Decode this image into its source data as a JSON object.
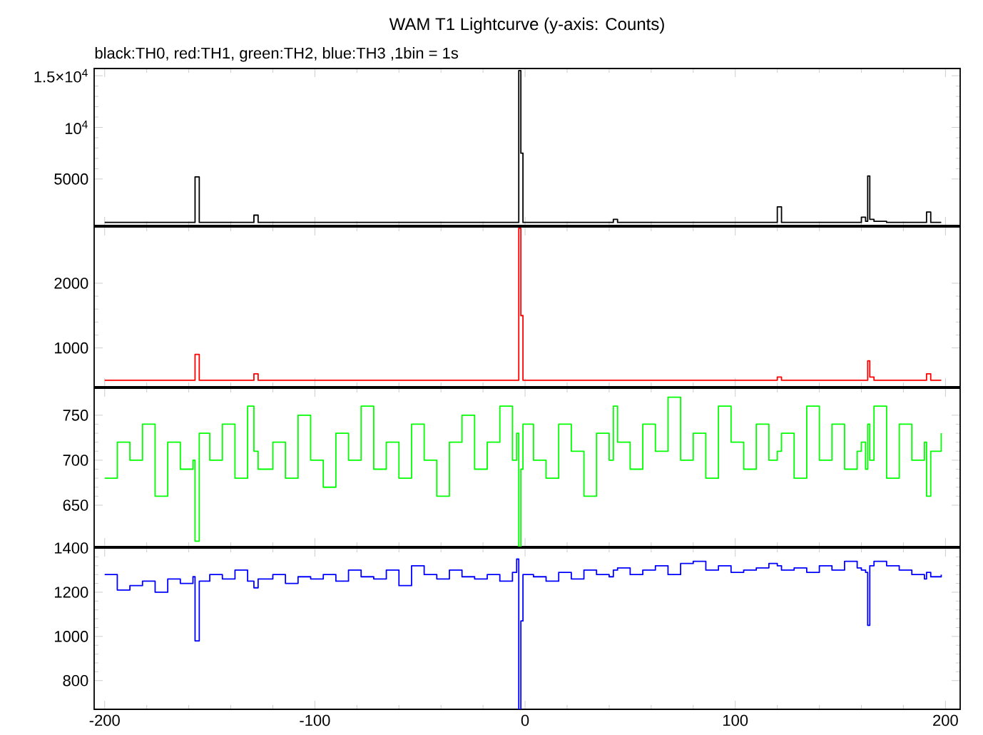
{
  "chart_data": [
    {
      "type": "step",
      "title": "WAM T1 Lightcurve (y-axis: Counts)",
      "subtitle": "black:TH0, red:TH1, green:TH2, blue:TH3 ,1bin = 1s",
      "color": "#000000",
      "tick_labels": "y",
      "xlim": [
        -205,
        207
      ],
      "xticks": [
        -200,
        -100,
        0,
        100,
        200
      ],
      "ylim": [
        500,
        15700
      ],
      "yticks": [
        5000,
        {
          "value": 10000,
          "label": "10$^{4}$"
        },
        {
          "value": 15000,
          "label": "1.5×10$^{4}$"
        }
      ],
      "x": [
        -200,
        -194,
        -188,
        -182,
        -176,
        -170,
        -164,
        -158,
        -157,
        -155,
        -150,
        -144,
        -138,
        -132,
        -129,
        -127,
        -120,
        -114,
        -108,
        -102,
        -96,
        -90,
        -84,
        -78,
        -72,
        -66,
        -60,
        -54,
        -48,
        -42,
        -36,
        -30,
        -24,
        -18,
        -12,
        -6,
        -4,
        -3,
        -2,
        -1,
        4,
        10,
        16,
        22,
        28,
        34,
        40,
        42,
        44,
        50,
        56,
        62,
        68,
        74,
        80,
        86,
        92,
        98,
        104,
        110,
        116,
        120,
        122,
        128,
        134,
        140,
        146,
        152,
        158,
        160,
        162,
        163,
        164,
        166,
        172,
        178,
        184,
        190,
        191,
        193,
        198
      ],
      "values": [
        800,
        800,
        800,
        800,
        800,
        800,
        800,
        800,
        5200,
        800,
        800,
        800,
        800,
        800,
        1500,
        800,
        800,
        800,
        800,
        800,
        800,
        800,
        800,
        800,
        800,
        800,
        800,
        800,
        800,
        800,
        800,
        800,
        800,
        800,
        800,
        800,
        800,
        15500,
        7500,
        800,
        800,
        800,
        800,
        800,
        800,
        800,
        800,
        1100,
        800,
        800,
        800,
        800,
        800,
        800,
        800,
        800,
        800,
        800,
        800,
        800,
        800,
        2300,
        800,
        800,
        800,
        800,
        800,
        800,
        800,
        1300,
        900,
        5300,
        1100,
        900,
        800,
        800,
        800,
        800,
        1800,
        800,
        800
      ]
    },
    {
      "type": "step",
      "color": "#ff0000",
      "tick_labels": "y",
      "xlim": [
        -205,
        207
      ],
      "xticks": [
        -200,
        -100,
        0,
        100,
        200
      ],
      "ylim": [
        400,
        2870
      ],
      "yticks": [
        1000,
        2000
      ],
      "x": [
        -200,
        -194,
        -188,
        -182,
        -176,
        -170,
        -164,
        -158,
        -157,
        -155,
        -150,
        -144,
        -138,
        -132,
        -129,
        -127,
        -120,
        -114,
        -108,
        -102,
        -96,
        -90,
        -84,
        -78,
        -72,
        -66,
        -60,
        -54,
        -48,
        -42,
        -36,
        -30,
        -24,
        -18,
        -12,
        -6,
        -4,
        -3,
        -2,
        -1,
        4,
        10,
        16,
        22,
        28,
        34,
        40,
        42,
        44,
        50,
        56,
        62,
        68,
        74,
        80,
        86,
        92,
        98,
        104,
        110,
        116,
        120,
        122,
        128,
        134,
        140,
        146,
        152,
        158,
        160,
        162,
        163,
        164,
        166,
        172,
        178,
        184,
        190,
        191,
        193,
        198
      ],
      "values": [
        500,
        500,
        500,
        500,
        500,
        500,
        500,
        500,
        900,
        500,
        500,
        500,
        500,
        500,
        600,
        500,
        500,
        500,
        500,
        500,
        500,
        500,
        500,
        500,
        500,
        500,
        500,
        500,
        500,
        500,
        500,
        500,
        500,
        500,
        500,
        500,
        500,
        2850,
        1500,
        500,
        500,
        500,
        500,
        500,
        500,
        500,
        500,
        500,
        500,
        500,
        500,
        500,
        500,
        500,
        500,
        500,
        500,
        500,
        500,
        500,
        500,
        550,
        500,
        500,
        500,
        500,
        500,
        500,
        500,
        500,
        500,
        800,
        550,
        500,
        500,
        500,
        500,
        500,
        600,
        500,
        500
      ]
    },
    {
      "type": "step",
      "color": "#00ff00",
      "tick_labels": "y",
      "xlim": [
        -205,
        207
      ],
      "xticks": [
        -200,
        -100,
        0,
        100,
        200
      ],
      "ylim": [
        604,
        780
      ],
      "yticks": [
        650,
        700,
        750
      ],
      "x": [
        -200,
        -194,
        -188,
        -182,
        -176,
        -170,
        -164,
        -158,
        -157,
        -155,
        -150,
        -144,
        -138,
        -132,
        -129,
        -127,
        -120,
        -114,
        -108,
        -102,
        -96,
        -90,
        -84,
        -78,
        -72,
        -66,
        -60,
        -54,
        -48,
        -42,
        -36,
        -30,
        -24,
        -18,
        -12,
        -6,
        -4,
        -3,
        -2,
        -1,
        4,
        10,
        16,
        22,
        28,
        34,
        40,
        42,
        44,
        50,
        56,
        62,
        68,
        74,
        80,
        86,
        92,
        98,
        104,
        110,
        116,
        120,
        122,
        128,
        134,
        140,
        146,
        152,
        158,
        160,
        162,
        163,
        164,
        166,
        172,
        178,
        184,
        190,
        191,
        193,
        198
      ],
      "values": [
        680,
        720,
        700,
        740,
        660,
        720,
        690,
        700,
        610,
        730,
        700,
        740,
        680,
        760,
        710,
        690,
        720,
        680,
        750,
        700,
        670,
        730,
        700,
        760,
        690,
        720,
        680,
        740,
        700,
        660,
        720,
        750,
        690,
        720,
        760,
        700,
        730,
        604,
        690,
        740,
        700,
        680,
        740,
        710,
        660,
        730,
        700,
        760,
        720,
        690,
        740,
        710,
        770,
        700,
        730,
        680,
        760,
        720,
        690,
        740,
        700,
        710,
        730,
        680,
        760,
        700,
        740,
        690,
        710,
        720,
        690,
        740,
        700,
        760,
        680,
        740,
        700,
        720,
        660,
        710,
        730
      ]
    },
    {
      "type": "step",
      "color": "#0000ff",
      "xlim": [
        -205,
        207
      ],
      "xticks": [
        -200,
        -100,
        0,
        100,
        200
      ],
      "ylim": [
        670,
        1400
      ],
      "yticks": [
        800,
        1000,
        1200,
        1400
      ],
      "x": [
        -200,
        -194,
        -188,
        -182,
        -176,
        -170,
        -164,
        -158,
        -157,
        -155,
        -150,
        -144,
        -138,
        -132,
        -129,
        -127,
        -120,
        -114,
        -108,
        -102,
        -96,
        -90,
        -84,
        -78,
        -72,
        -66,
        -60,
        -54,
        -48,
        -42,
        -36,
        -30,
        -24,
        -18,
        -12,
        -6,
        -4,
        -3,
        -2,
        -1,
        4,
        10,
        16,
        22,
        28,
        34,
        40,
        42,
        44,
        50,
        56,
        62,
        68,
        74,
        80,
        86,
        92,
        98,
        104,
        110,
        116,
        120,
        122,
        128,
        134,
        140,
        146,
        152,
        158,
        160,
        162,
        163,
        164,
        166,
        172,
        178,
        184,
        190,
        191,
        193,
        198
      ],
      "values": [
        1280,
        1210,
        1230,
        1250,
        1200,
        1260,
        1240,
        1270,
        980,
        1250,
        1280,
        1260,
        1300,
        1250,
        1220,
        1260,
        1280,
        1240,
        1270,
        1260,
        1280,
        1250,
        1300,
        1270,
        1260,
        1300,
        1230,
        1320,
        1280,
        1260,
        1300,
        1270,
        1260,
        1280,
        1250,
        1290,
        1350,
        670,
        1070,
        1280,
        1270,
        1250,
        1290,
        1260,
        1300,
        1280,
        1270,
        1300,
        1310,
        1280,
        1300,
        1320,
        1280,
        1330,
        1340,
        1300,
        1320,
        1290,
        1300,
        1310,
        1330,
        1320,
        1300,
        1310,
        1290,
        1320,
        1300,
        1340,
        1310,
        1300,
        1290,
        1050,
        1320,
        1340,
        1320,
        1300,
        1280,
        1260,
        1290,
        1270,
        1280
      ]
    }
  ]
}
